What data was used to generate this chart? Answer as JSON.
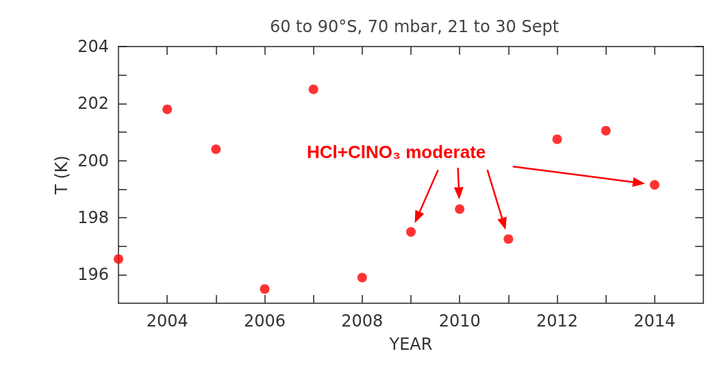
{
  "chart_data": {
    "type": "scatter",
    "title": "60 to 90°S, 70 mbar, 21 to 30 Sept",
    "xlabel": "YEAR",
    "ylabel": "T (K)",
    "x": [
      2003,
      2004,
      2005,
      2006,
      2007,
      2008,
      2009,
      2010,
      2011,
      2012,
      2013,
      2014
    ],
    "series": [
      {
        "color": "#ff0000",
        "values": [
          196.55,
          201.8,
          200.4,
          195.5,
          202.5,
          195.9,
          197.5,
          198.3,
          197.25,
          200.75,
          201.05,
          199.15
        ]
      }
    ],
    "annotations": [
      "HCl+ClNO₃ moderate"
    ],
    "xlim": [
      2003,
      2015
    ],
    "ylim": [
      195,
      204
    ],
    "xticks": [
      2004,
      {
        "value": 2005,
        "label": null
      },
      2006,
      {
        "value": 2007,
        "label": null
      },
      2008,
      {
        "value": 2009,
        "label": null
      },
      2010,
      {
        "value": 2011,
        "label": null
      },
      2012,
      {
        "value": 2013,
        "label": null
      },
      2014
    ],
    "yticks": [
      196,
      {
        "value": 197,
        "label": null
      },
      198,
      {
        "value": 199,
        "label": null
      },
      200,
      {
        "value": 201,
        "label": null
      },
      202,
      {
        "value": 203,
        "label": null
      },
      204
    ],
    "marker": "circle",
    "grid": false
  }
}
